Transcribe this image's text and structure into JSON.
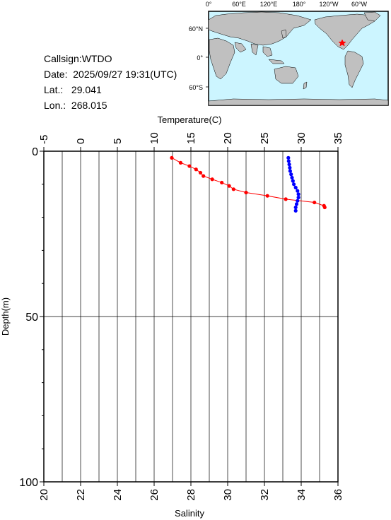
{
  "info": {
    "callsign": "Callsign:WTDO",
    "date": "Date:  2025/09/27 19:31(UTC)",
    "lat": "Lat.:   29.041",
    "lon": "Lon.:  268.015"
  },
  "map": {
    "top_labels": [
      "0°",
      "60°E",
      "120°E",
      "180°",
      "120°W",
      "60°W"
    ],
    "left_labels": [
      "60°N",
      "0°",
      "60°S"
    ],
    "station_marker": "red-star",
    "ocean_color": "#ccf5ff",
    "land_color": "#c0c0c0"
  },
  "chart_data": {
    "type": "line",
    "top_axis_label": "Temperature(C)",
    "bottom_axis_label": "Salinity",
    "left_axis_label": "Depth(m)",
    "temperature_ticks": [
      -5,
      0,
      5,
      10,
      15,
      20,
      25,
      30,
      35
    ],
    "temperature_range": [
      -5,
      35
    ],
    "salinity_ticks": [
      20,
      22,
      24,
      26,
      28,
      30,
      32,
      34,
      36
    ],
    "salinity_range": [
      20,
      36
    ],
    "depth_ticks": [
      0,
      50,
      100
    ],
    "depth_range": [
      0,
      100
    ],
    "temperature_color": "#ff0000",
    "salinity_color": "#0000ff",
    "series": [
      {
        "name": "Temperature",
        "depth": [
          2,
          3.5,
          4.5,
          5.5,
          6.5,
          7.5,
          8.5,
          9.5,
          10.5,
          11.5,
          12.5,
          13.5,
          14.5,
          15.5,
          16.5,
          17.0
        ],
        "values": [
          12.4,
          13.6,
          14.8,
          15.7,
          16.3,
          16.7,
          17.9,
          19.2,
          20.2,
          20.8,
          22.5,
          25.4,
          27.9,
          31.8,
          33.1,
          33.2
        ]
      },
      {
        "name": "Salinity",
        "depth": [
          2,
          3,
          4,
          5,
          6,
          7,
          8,
          9,
          10,
          11,
          12,
          13,
          14,
          15,
          16,
          17,
          18
        ],
        "values": [
          33.3,
          33.32,
          33.35,
          33.38,
          33.4,
          33.45,
          33.5,
          33.55,
          33.6,
          33.7,
          33.8,
          33.85,
          33.85,
          33.8,
          33.75,
          33.7,
          33.7
        ]
      }
    ]
  }
}
